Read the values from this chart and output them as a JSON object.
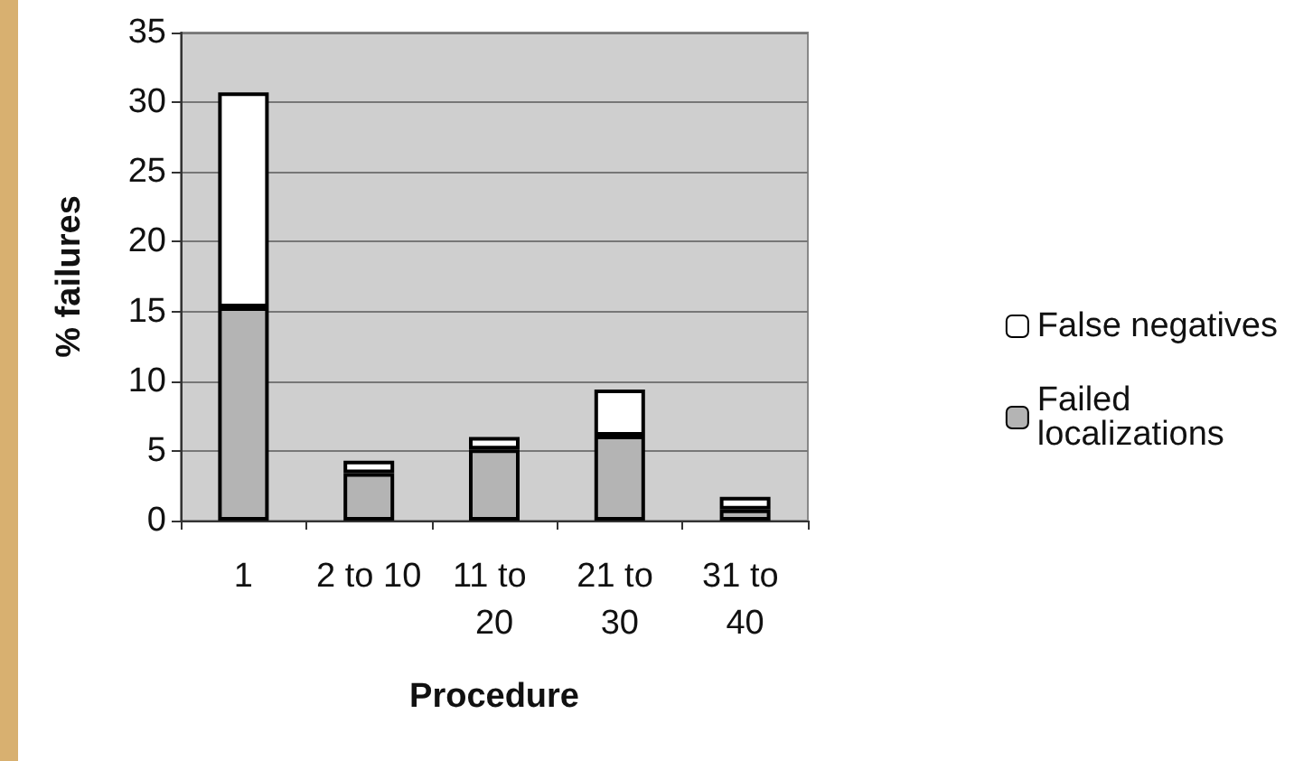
{
  "chart_data": {
    "type": "bar",
    "xlabel": "Procedure",
    "ylabel": "% failures",
    "categories": [
      "1",
      "2 to 10",
      "11 to 20",
      "21 to 30",
      "31 to 40"
    ],
    "stacked": true,
    "series": [
      {
        "name": "Failed localizations",
        "color": "#b4b4b4",
        "values": [
          15.3,
          3.4,
          5.1,
          6.1,
          0.8
        ]
      },
      {
        "name": "False negatives",
        "color": "#ffffff",
        "values": [
          15.4,
          0.9,
          0.9,
          3.3,
          0.9
        ]
      }
    ],
    "ylim": [
      0,
      35
    ],
    "yticks": [
      0,
      5,
      10,
      15,
      20,
      25,
      30,
      35
    ],
    "grid": "y",
    "legend": "right"
  }
}
